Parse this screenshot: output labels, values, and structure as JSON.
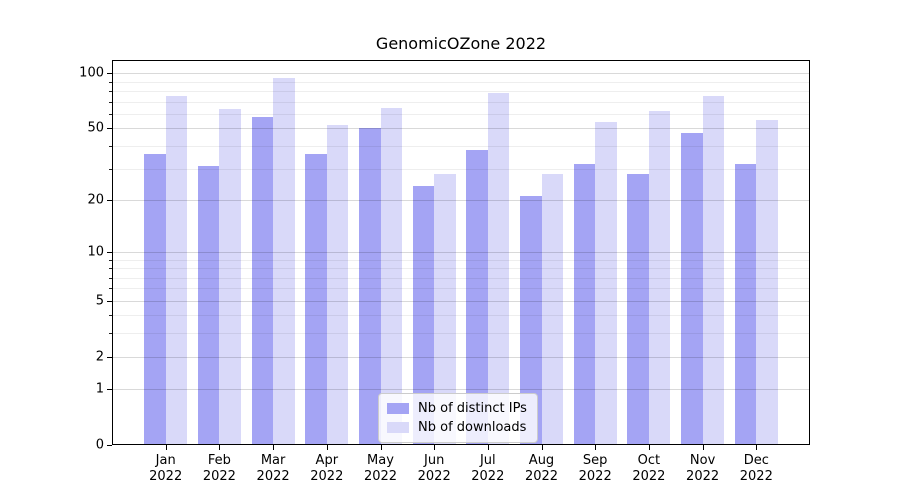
{
  "title": "GenomicOZone 2022",
  "legend": {
    "items": [
      {
        "label": "Nb of distinct IPs",
        "color": "#a4a4f4"
      },
      {
        "label": "Nb of downloads",
        "color": "#d9d9f9"
      }
    ]
  },
  "axes": {
    "y_tick_labels": [
      "0",
      "1",
      "2",
      "5",
      "10",
      "20",
      "50",
      "100"
    ],
    "x_year_label": "2022"
  },
  "chart_data": {
    "type": "bar",
    "title": "GenomicOZone 2022",
    "categories": [
      "Jan",
      "Feb",
      "Mar",
      "Apr",
      "May",
      "Jun",
      "Jul",
      "Aug",
      "Sep",
      "Oct",
      "Nov",
      "Dec"
    ],
    "category_year": "2022",
    "series": [
      {
        "name": "Nb of distinct IPs",
        "color": "#a4a4f4",
        "values": [
          36,
          31,
          58,
          36,
          50,
          24,
          38,
          21,
          32,
          28,
          47,
          32
        ]
      },
      {
        "name": "Nb of downloads",
        "color": "#d9d9f9",
        "values": [
          75,
          64,
          95,
          52,
          65,
          28,
          78,
          28,
          54,
          62,
          75,
          56
        ]
      }
    ],
    "yscale": "log10(1+v)",
    "ylim": [
      0,
      118
    ],
    "yticks": [
      0,
      1,
      2,
      5,
      10,
      20,
      50,
      100
    ],
    "yticks_minor": [
      3,
      4,
      6,
      7,
      8,
      9,
      30,
      40,
      60,
      70,
      80,
      90
    ],
    "grid": true,
    "legend_position": "inside lower center"
  }
}
